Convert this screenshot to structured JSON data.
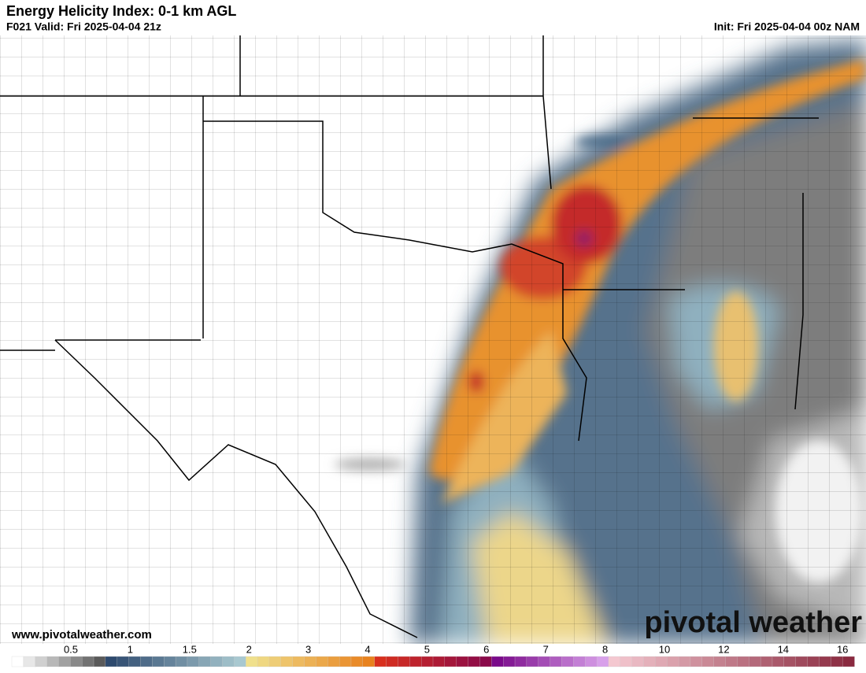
{
  "header": {
    "title": "Energy Helicity Index: 0-1 km AGL",
    "valid": "F021 Valid: Fri 2025-04-04 21z",
    "init": "Init: Fri 2025-04-04 00z NAM"
  },
  "footer": {
    "website": "www.pivotalweather.com",
    "logo": "pivotal weather"
  },
  "colorbar": {
    "ticks": [
      0.5,
      1,
      1.5,
      2,
      3,
      4,
      5,
      6,
      7,
      8,
      10,
      12,
      14,
      16
    ]
  }
}
